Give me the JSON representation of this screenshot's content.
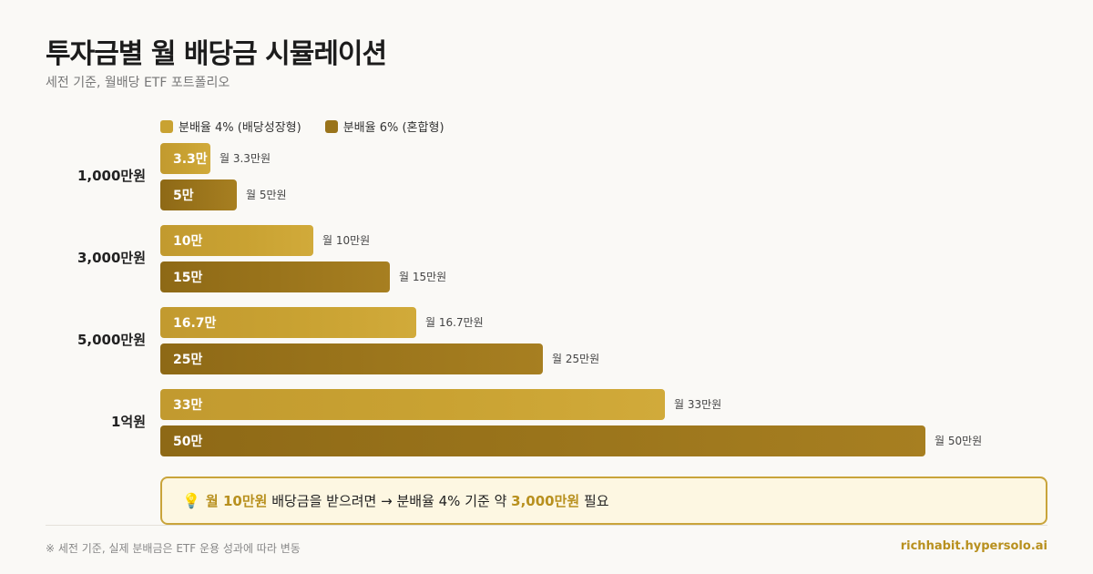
{
  "header": {
    "title": "투자금별 월 배당금 시뮬레이션",
    "subtitle": "세전 기준, 월배당 ETF 포트폴리오"
  },
  "colors": {
    "series_4pct": "#c9a232",
    "series_6pct": "#9a741b",
    "accent": "#b8901e"
  },
  "chart_data": {
    "type": "bar",
    "orientation": "horizontal",
    "title": "투자금별 월 배당금 시뮬레이션",
    "subtitle": "세전 기준, 월배당 ETF 포트폴리오",
    "categories": [
      "1,000만원",
      "3,000만원",
      "5,000만원",
      "1억원"
    ],
    "unit": "만원",
    "xlim": [
      0,
      50
    ],
    "grid": false,
    "legend_position": "top-left",
    "series": [
      {
        "name": "분배율 4% (배당성장형)",
        "values": [
          3.3,
          10,
          16.7,
          33
        ],
        "bar_labels": [
          "3.3만",
          "10만",
          "16.7만",
          "33만"
        ],
        "end_labels": [
          "월 3.3만원",
          "월 10만원",
          "월 16.7만원",
          "월 33만원"
        ]
      },
      {
        "name": "분배율 6% (혼합형)",
        "values": [
          5,
          15,
          25,
          50
        ],
        "bar_labels": [
          "5만",
          "15만",
          "25만",
          "50만"
        ],
        "end_labels": [
          "월 5만원",
          "월 15만원",
          "월 25만원",
          "월 50만원"
        ]
      }
    ]
  },
  "callout": {
    "icon": "lightbulb-icon",
    "prefix": "월 10만원",
    "middle": " 배당금을 받으려면 → 분배율 4% 기준 약 ",
    "amount": "3,000만원",
    "suffix": " 필요"
  },
  "footer": {
    "note": "※ 세전 기준, 실제 분배금은 ETF 운용 성과에 따라 변동",
    "site": "richhabit.hypersolo.ai"
  }
}
